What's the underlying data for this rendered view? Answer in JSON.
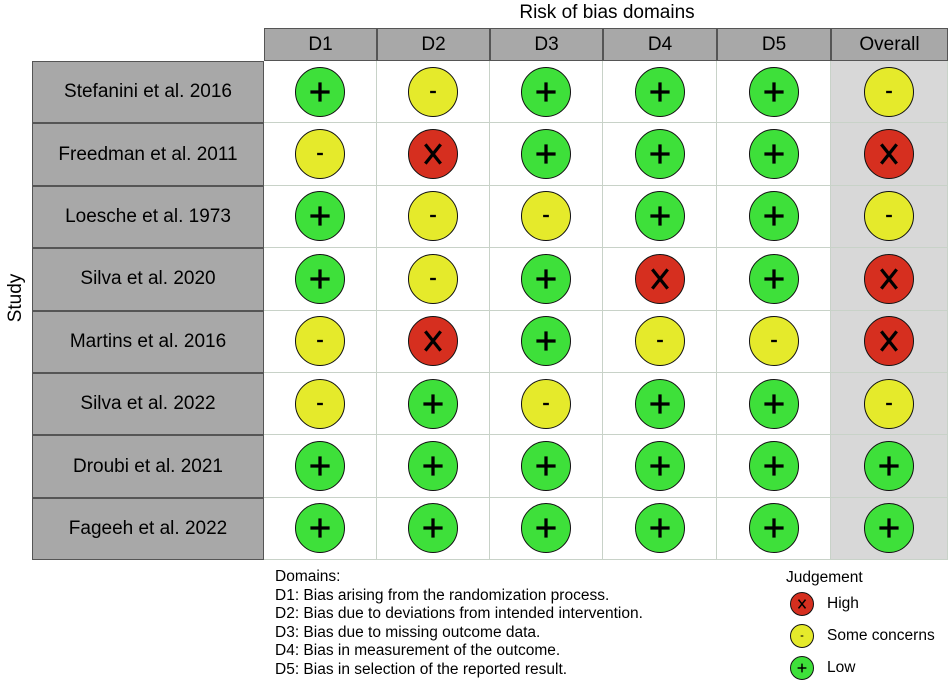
{
  "chart_data": {
    "type": "table",
    "title": "Risk of bias domains",
    "ylabel": "Study",
    "columns": [
      "D1",
      "D2",
      "D3",
      "D4",
      "D5",
      "Overall"
    ],
    "rows": [
      {
        "study": "Stefanini et al. 2016",
        "judgements": [
          "low",
          "some",
          "low",
          "low",
          "low",
          "some"
        ]
      },
      {
        "study": "Freedman et al. 2011",
        "judgements": [
          "some",
          "high",
          "low",
          "low",
          "low",
          "high"
        ]
      },
      {
        "study": "Loesche et al. 1973",
        "judgements": [
          "low",
          "some",
          "some",
          "low",
          "low",
          "some"
        ]
      },
      {
        "study": "Silva et al. 2020",
        "judgements": [
          "low",
          "some",
          "low",
          "high",
          "low",
          "high"
        ]
      },
      {
        "study": "Martins et al. 2016",
        "judgements": [
          "some",
          "high",
          "low",
          "some",
          "some",
          "high"
        ]
      },
      {
        "study": "Silva et al. 2022",
        "judgements": [
          "some",
          "low",
          "some",
          "low",
          "low",
          "some"
        ]
      },
      {
        "study": "Droubi et al. 2021",
        "judgements": [
          "low",
          "low",
          "low",
          "low",
          "low",
          "low"
        ]
      },
      {
        "study": "Fageeh et al. 2022",
        "judgements": [
          "low",
          "low",
          "low",
          "low",
          "low",
          "low"
        ]
      }
    ],
    "symbols": {
      "low": "+",
      "some": "-",
      "high": "X"
    },
    "colors": {
      "low": "#3ee03a",
      "some": "#e5ea2b",
      "high": "#d62f1f"
    },
    "domains": {
      "heading": "Domains:",
      "items": [
        "D1: Bias arising from the randomization process.",
        "D2: Bias due to deviations from intended intervention.",
        "D3: Bias due to missing outcome data.",
        "D4: Bias in measurement of the outcome.",
        "D5: Bias in selection of the reported result."
      ]
    },
    "legend": {
      "title": "Judgement",
      "entries": [
        {
          "key": "high",
          "label": "High"
        },
        {
          "key": "some",
          "label": "Some concerns"
        },
        {
          "key": "low",
          "label": "Low"
        }
      ]
    }
  }
}
